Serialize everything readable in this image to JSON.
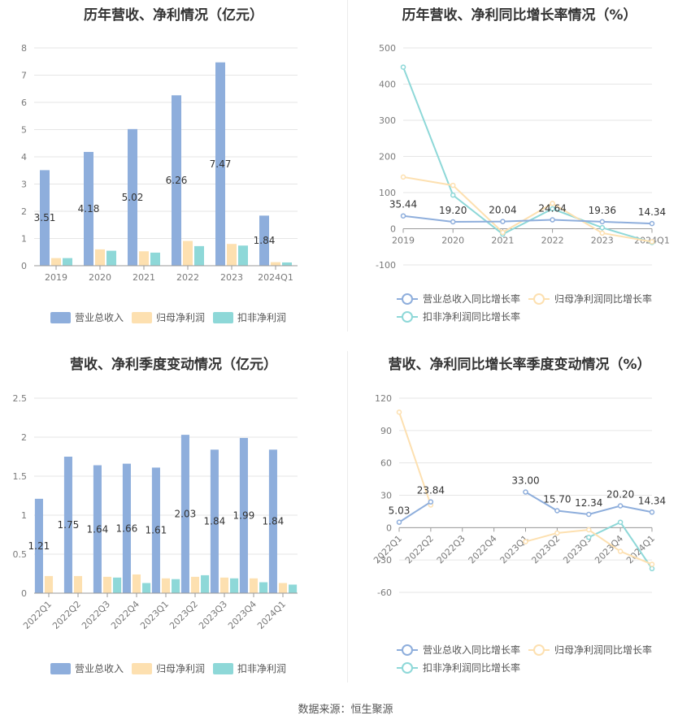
{
  "source_text": "数据来源：恒生聚源",
  "chart_data": [
    {
      "id": "annual_values",
      "type": "bar",
      "title": "历年营收、净利情况（亿元）",
      "categories": [
        "2019",
        "2020",
        "2021",
        "2022",
        "2023",
        "2024Q1"
      ],
      "ylim": [
        0,
        8
      ],
      "yticks": [
        0,
        1,
        2,
        3,
        4,
        5,
        6,
        7,
        8
      ],
      "series": [
        {
          "name": "营业总收入",
          "color": "#8eaedc",
          "values": [
            3.51,
            4.18,
            5.02,
            6.26,
            7.47,
            1.84
          ],
          "labels": [
            "3.51",
            "4.18",
            "5.02",
            "6.26",
            "7.47",
            "1.84"
          ]
        },
        {
          "name": "归母净利润",
          "color": "#fde0b0",
          "values": [
            0.28,
            0.6,
            0.53,
            0.91,
            0.8,
            0.13
          ]
        },
        {
          "name": "扣非净利润",
          "color": "#8ed8d8",
          "values": [
            0.28,
            0.55,
            0.48,
            0.72,
            0.74,
            0.12
          ]
        }
      ],
      "grid": true,
      "legend": "bottom"
    },
    {
      "id": "annual_growth",
      "type": "line",
      "title": "历年营收、净利同比增长率情况（%）",
      "categories": [
        "2019",
        "2020",
        "2021",
        "2022",
        "2023",
        "2024Q1"
      ],
      "ylim": [
        -100,
        500
      ],
      "yticks": [
        -100,
        0,
        100,
        200,
        300,
        400,
        500
      ],
      "series": [
        {
          "name": "营业总收入同比增长率",
          "color": "#8eaedc",
          "values": [
            35.44,
            19.2,
            20.04,
            24.64,
            19.36,
            14.34
          ],
          "labels": [
            "35.44",
            "19.20",
            "20.04",
            "24.64",
            "19.36",
            "14.34"
          ]
        },
        {
          "name": "归母净利润同比增长率",
          "color": "#fde0b0",
          "values": [
            143,
            120,
            -10,
            70,
            -12,
            -36
          ]
        },
        {
          "name": "扣非净利润同比增长率",
          "color": "#8ed8d8",
          "values": [
            447,
            93,
            -15,
            55,
            3,
            -38
          ]
        }
      ],
      "grid": true,
      "legend": "bottom"
    },
    {
      "id": "quarterly_values",
      "type": "bar",
      "title": "营收、净利季度变动情况（亿元）",
      "categories": [
        "2022Q1",
        "2022Q2",
        "2022Q3",
        "2022Q4",
        "2023Q1",
        "2023Q2",
        "2023Q3",
        "2023Q4",
        "2024Q1"
      ],
      "ylim": [
        0,
        2.5
      ],
      "yticks": [
        0,
        0.5,
        1,
        1.5,
        2,
        2.5
      ],
      "series": [
        {
          "name": "营业总收入",
          "color": "#8eaedc",
          "values": [
            1.21,
            1.75,
            1.64,
            1.66,
            1.61,
            2.03,
            1.84,
            1.99,
            1.84
          ],
          "labels": [
            "1.21",
            "1.75",
            "1.64",
            "1.66",
            "1.61",
            "2.03",
            "1.84",
            "1.99",
            "1.84"
          ]
        },
        {
          "name": "归母净利润",
          "color": "#fde0b0",
          "values": [
            0.22,
            0.22,
            0.21,
            0.24,
            0.19,
            0.21,
            0.2,
            0.19,
            0.13
          ]
        },
        {
          "name": "扣非净利润",
          "color": "#8ed8d8",
          "values": [
            0,
            0,
            0.2,
            0.13,
            0.18,
            0.23,
            0.19,
            0.14,
            0.11
          ]
        }
      ],
      "grid": true,
      "legend": "bottom"
    },
    {
      "id": "quarterly_growth",
      "type": "line",
      "title": "营收、净利同比增长率季度变动情况（%）",
      "categories": [
        "2022Q1",
        "2022Q2",
        "2022Q3",
        "2022Q4",
        "2023Q1",
        "2023Q2",
        "2023Q3",
        "2023Q4",
        "2024Q1"
      ],
      "ylim": [
        -60,
        120
      ],
      "yticks": [
        -60,
        -30,
        0,
        30,
        60,
        90,
        120
      ],
      "series": [
        {
          "name": "营业总收入同比增长率",
          "color": "#8eaedc",
          "values": [
            5.03,
            23.84,
            null,
            null,
            33.0,
            15.7,
            12.34,
            20.2,
            14.34
          ],
          "labels": [
            "5.03",
            "23.84",
            "",
            "",
            "33.00",
            "15.70",
            "12.34",
            "20.20",
            "14.34"
          ]
        },
        {
          "name": "归母净利润同比增长率",
          "color": "#fde0b0",
          "values": [
            107,
            21,
            null,
            null,
            -13,
            -5,
            -2,
            -22,
            -34
          ]
        },
        {
          "name": "扣非净利润同比增长率",
          "color": "#8ed8d8",
          "values": [
            null,
            null,
            null,
            null,
            null,
            null,
            -9,
            5,
            -38
          ]
        }
      ],
      "grid": true,
      "legend": "bottom"
    }
  ]
}
